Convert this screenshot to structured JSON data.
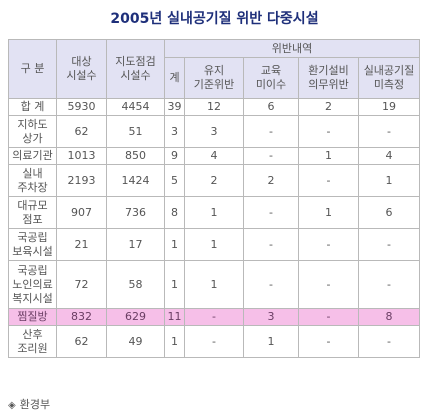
{
  "title": "2005년 실내공기질 위반 다중시설",
  "headers": {
    "category": "구 분",
    "target_facilities": "대상\n시설수",
    "inspected_facilities": "지도점검\n시설수",
    "violations": "위반내역",
    "total": "계",
    "maintenance_violation": "유지\n기준위반",
    "no_training": "교육\n미이수",
    "ventilation_violation": "환기설비\n의무위반",
    "not_measured": "실내공기질\n미측정"
  },
  "rows": [
    {
      "category": "합 계",
      "target": "5930",
      "inspected": "4454",
      "total": "39",
      "maintenance": "12",
      "training": "6",
      "ventilation": "2",
      "measurement": "19",
      "highlight": false
    },
    {
      "category": "지하도\n상가",
      "target": "62",
      "inspected": "51",
      "total": "3",
      "maintenance": "3",
      "training": "-",
      "ventilation": "-",
      "measurement": "-",
      "highlight": false
    },
    {
      "category": "의료기관",
      "target": "1013",
      "inspected": "850",
      "total": "9",
      "maintenance": "4",
      "training": "-",
      "ventilation": "1",
      "measurement": "4",
      "highlight": false
    },
    {
      "category": "실내\n주차장",
      "target": "2193",
      "inspected": "1424",
      "total": "5",
      "maintenance": "2",
      "training": "2",
      "ventilation": "-",
      "measurement": "1",
      "highlight": false
    },
    {
      "category": "대규모\n점포",
      "target": "907",
      "inspected": "736",
      "total": "8",
      "maintenance": "1",
      "training": "-",
      "ventilation": "1",
      "measurement": "6",
      "highlight": false
    },
    {
      "category": "국공립\n보육시설",
      "target": "21",
      "inspected": "17",
      "total": "1",
      "maintenance": "1",
      "training": "-",
      "ventilation": "-",
      "measurement": "-",
      "highlight": false
    },
    {
      "category": "국공립\n노인의료\n복지시설",
      "target": "72",
      "inspected": "58",
      "total": "1",
      "maintenance": "1",
      "training": "-",
      "ventilation": "-",
      "measurement": "-",
      "highlight": false
    },
    {
      "category": "찜질방",
      "target": "832",
      "inspected": "629",
      "total": "11",
      "maintenance": "-",
      "training": "3",
      "ventilation": "-",
      "measurement": "8",
      "highlight": true
    },
    {
      "category": "산후\n조리원",
      "target": "62",
      "inspected": "49",
      "total": "1",
      "maintenance": "-",
      "training": "1",
      "ventilation": "-",
      "measurement": "-",
      "highlight": false
    }
  ],
  "source": {
    "icon": "diamond-icon",
    "label": "환경부"
  },
  "colors": {
    "title": "#1e2f7a",
    "header_bg": "#e2e2f3",
    "highlight_bg": "#f6bfe8",
    "border": "#b9b9b9"
  }
}
